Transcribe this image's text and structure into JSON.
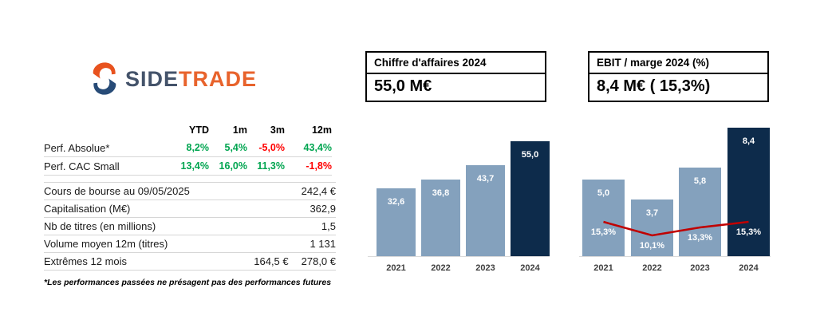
{
  "logo": {
    "side": "SIDE",
    "trade": "TRADE",
    "icon": "sidetrade-swoosh-icon"
  },
  "perf_table": {
    "headers": [
      "YTD",
      "1m",
      "3m",
      "12m"
    ],
    "rows": [
      {
        "label": "Perf. Absolue*",
        "values": [
          {
            "text": "8,2%",
            "color": "#00A550"
          },
          {
            "text": "5,4%",
            "color": "#00A550"
          },
          {
            "text": "-5,0%",
            "color": "#FF0000"
          },
          {
            "text": "43,4%",
            "color": "#00A550"
          }
        ]
      },
      {
        "label": "Perf. CAC Small",
        "values": [
          {
            "text": "13,4%",
            "color": "#00A550"
          },
          {
            "text": "16,0%",
            "color": "#00A550"
          },
          {
            "text": "11,3%",
            "color": "#00A550"
          },
          {
            "text": "-1,8%",
            "color": "#FF0000"
          }
        ]
      }
    ]
  },
  "info_table": {
    "rows": [
      {
        "label": "Cours de bourse au 09/05/2025",
        "values": [
          "242,4 €"
        ]
      },
      {
        "label": "Capitalisation (M€)",
        "values": [
          "362,9"
        ]
      },
      {
        "label": "Nb de titres (en millions)",
        "values": [
          "1,5"
        ]
      },
      {
        "label": "Volume moyen 12m (titres)",
        "values": [
          "1 131"
        ]
      },
      {
        "label": "Extrêmes 12 mois",
        "values": [
          "164,5 €",
          "278,0 €"
        ]
      }
    ]
  },
  "footnote": "*Les performances passées ne présagent pas des performances futures",
  "chart_data": [
    {
      "type": "bar",
      "title": "Chiffre d'affaires 2024",
      "headline": "55,0 M€",
      "categories": [
        "2021",
        "2022",
        "2023",
        "2024"
      ],
      "values": [
        32.6,
        36.8,
        43.7,
        55.0
      ],
      "labels": [
        "32,6",
        "36,8",
        "43,7",
        "55,0"
      ],
      "bar_colors": [
        "#84A1BD",
        "#84A1BD",
        "#84A1BD",
        "#0D2B4B"
      ],
      "xlabel": "",
      "ylabel": "",
      "ylim": [
        0,
        58
      ],
      "grid": false,
      "legend": "none"
    },
    {
      "type": "bar+line",
      "title": "EBIT / marge 2024 (%)",
      "headline": "8,4 M€ ( 15,3%)",
      "categories": [
        "2021",
        "2022",
        "2023",
        "2024"
      ],
      "series": [
        {
          "name": "EBIT (M€)",
          "type": "bar",
          "values": [
            5.0,
            3.7,
            5.8,
            8.4
          ],
          "labels": [
            "5,0",
            "3,7",
            "5,8",
            "8,4"
          ]
        },
        {
          "name": "Marge (%)",
          "type": "line",
          "values": [
            15.3,
            10.1,
            13.3,
            15.3
          ],
          "labels": [
            "15,3%",
            "10,1%",
            "13,3%",
            "15,3%"
          ],
          "color": "#C00000"
        }
      ],
      "bar_colors": [
        "#84A1BD",
        "#84A1BD",
        "#84A1BD",
        "#0D2B4B"
      ],
      "xlabel": "",
      "ylabel": "",
      "ylim": [
        0,
        8.8
      ],
      "grid": false,
      "legend": "none"
    }
  ],
  "colors": {
    "bar_light": "#84A1BD",
    "bar_dark": "#0D2B4B",
    "line_red": "#C00000",
    "positive": "#00A550",
    "negative": "#FF0000",
    "logo_side": "#44536A",
    "logo_trade": "#E8632C"
  }
}
